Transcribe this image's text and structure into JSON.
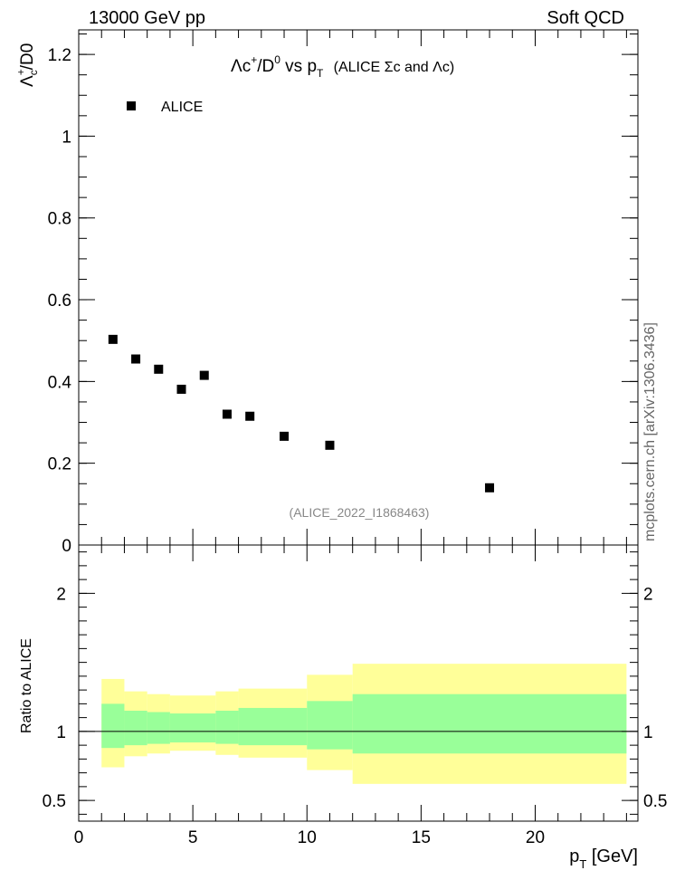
{
  "header": {
    "energy_label": "13000 GeV pp",
    "process_label": "Soft QCD"
  },
  "side_label": "mcplots.cern.ch [arXiv:1306.3436]",
  "chart_data": [
    {
      "type": "scatter",
      "title_parts": {
        "lambda": "Λ",
        "c": "c",
        "sup_plus": "+",
        "slash_d": "/D",
        "sup_zero": "0",
        "vs_p": " vs p",
        "sub_t": "T",
        "paren": "(ALICE Σc and Λc)"
      },
      "ylabel_parts": {
        "lambda": "Λ",
        "sup_plus": "+",
        "sub_c": "c",
        "rest": "/D0"
      },
      "legend": "ALICE",
      "reference": "(ALICE_2022_I1868463)",
      "xlim": [
        0,
        24.5
      ],
      "ylim": [
        0,
        1.26
      ],
      "yticks": [
        0,
        0.2,
        0.4,
        0.6,
        0.8,
        1,
        1.2
      ],
      "ytick_labels": [
        "0",
        "0.2",
        "0.4",
        "0.6",
        "0.8",
        "1",
        "1.2"
      ],
      "series": [
        {
          "name": "ALICE",
          "x": [
            1.5,
            2.5,
            3.5,
            4.5,
            5.5,
            6.5,
            7.5,
            9,
            11,
            18
          ],
          "y": [
            0.503,
            0.455,
            0.43,
            0.381,
            0.415,
            0.32,
            0.315,
            0.266,
            0.244,
            0.14
          ]
        }
      ]
    },
    {
      "type": "area",
      "ylabel": "Ratio to ALICE",
      "xlabel_p": "p",
      "xlabel_sub": "T",
      "xlabel_unit": " [GeV]",
      "xlim": [
        0,
        24.5
      ],
      "ylim": [
        0.35,
        2.35
      ],
      "xticks": [
        0,
        5,
        10,
        15,
        20
      ],
      "xtick_labels": [
        "0",
        "5",
        "10",
        "15",
        "20"
      ],
      "yticks": [
        0.5,
        1,
        2
      ],
      "ytick_labels": [
        "0.5",
        "1",
        "2"
      ],
      "reference_line": 1,
      "bins": [
        {
          "xlo": 1,
          "xhi": 2,
          "inner": [
            0.88,
            1.2
          ],
          "outer": [
            0.74,
            1.38
          ]
        },
        {
          "xlo": 2,
          "xhi": 3,
          "inner": [
            0.9,
            1.15
          ],
          "outer": [
            0.82,
            1.29
          ]
        },
        {
          "xlo": 3,
          "xhi": 4,
          "inner": [
            0.91,
            1.14
          ],
          "outer": [
            0.84,
            1.27
          ]
        },
        {
          "xlo": 4,
          "xhi": 6,
          "inner": [
            0.92,
            1.13
          ],
          "outer": [
            0.86,
            1.26
          ]
        },
        {
          "xlo": 6,
          "xhi": 7,
          "inner": [
            0.91,
            1.15
          ],
          "outer": [
            0.83,
            1.29
          ]
        },
        {
          "xlo": 7,
          "xhi": 10,
          "inner": [
            0.9,
            1.17
          ],
          "outer": [
            0.81,
            1.31
          ]
        },
        {
          "xlo": 10,
          "xhi": 12,
          "inner": [
            0.87,
            1.22
          ],
          "outer": [
            0.72,
            1.41
          ]
        },
        {
          "xlo": 12,
          "xhi": 24,
          "inner": [
            0.84,
            1.27
          ],
          "outer": [
            0.62,
            1.49
          ]
        }
      ]
    }
  ],
  "colors": {
    "inner_band": "#99ff99",
    "outer_band": "#ffff99",
    "marker": "#000000",
    "reference_text": "#888888",
    "side_text": "#666666"
  }
}
